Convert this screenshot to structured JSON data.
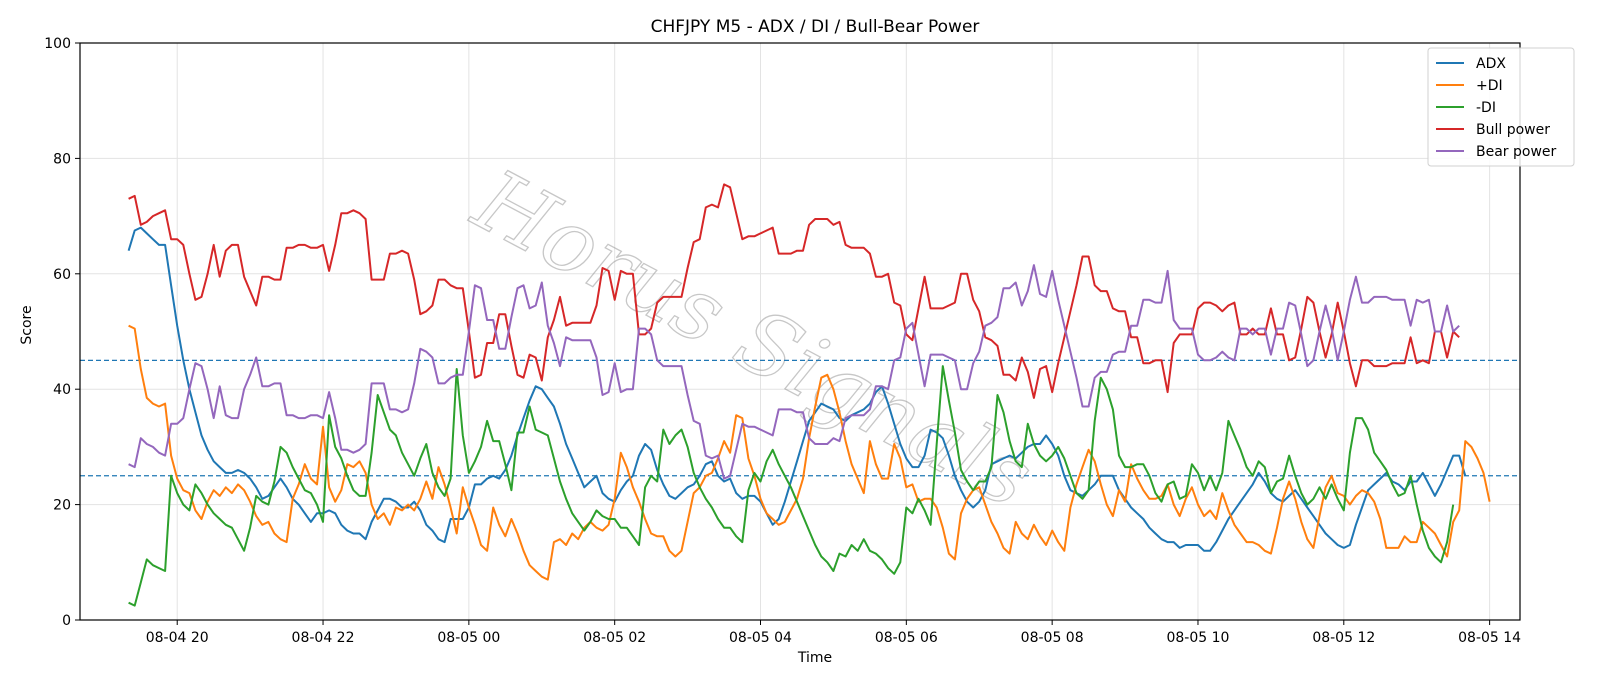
{
  "chart_data": {
    "type": "line",
    "title": "CHFJPY M5 - ADX / DI / Bull-Bear Power",
    "xlabel": "Time",
    "ylabel": "Score",
    "ylim": [
      0,
      100
    ],
    "yticks": [
      "0",
      "20",
      "40",
      "60",
      "80",
      "100"
    ],
    "x_start": "2025-08-04 19:20",
    "x_interval_minutes": 5,
    "xlim": [
      "2025-08-04 18:40",
      "2025-08-05 14:25"
    ],
    "xticks": [
      {
        "t": "2025-08-04 20:00",
        "label": "08-04 20"
      },
      {
        "t": "2025-08-04 22:00",
        "label": "08-04 22"
      },
      {
        "t": "2025-08-05 00:00",
        "label": "08-05 00"
      },
      {
        "t": "2025-08-05 02:00",
        "label": "08-05 02"
      },
      {
        "t": "2025-08-05 04:00",
        "label": "08-05 04"
      },
      {
        "t": "2025-08-05 06:00",
        "label": "08-05 06"
      },
      {
        "t": "2025-08-05 08:00",
        "label": "08-05 08"
      },
      {
        "t": "2025-08-05 10:00",
        "label": "08-05 10"
      },
      {
        "t": "2025-08-05 12:00",
        "label": "08-05 12"
      },
      {
        "t": "2025-08-05 14:00",
        "label": "08-05 14"
      }
    ],
    "hlines": [
      45,
      25
    ],
    "grid": true,
    "legend_position": "top-right",
    "watermark": "Horus Signals",
    "series": [
      {
        "name": "ADX",
        "color": "#1f77b4",
        "values": [
          64,
          67.5,
          68,
          67,
          66,
          65,
          65,
          58,
          51,
          45,
          40,
          36,
          32,
          29.5,
          27.5,
          26.5,
          25.5,
          25.5,
          26,
          25.5,
          24.5,
          23,
          21,
          21.5,
          23,
          24.5,
          23,
          21,
          20,
          18.5,
          17,
          18.5,
          18.5,
          19,
          18.5,
          16.5,
          15.5,
          15,
          15,
          14,
          17,
          19,
          21,
          21,
          20.5,
          19.5,
          19.5,
          20.5,
          19,
          16.5,
          15.5,
          14,
          13.5,
          17.5,
          17.5,
          17.5,
          19.5,
          23.5,
          23.5,
          24.5,
          25,
          24.5,
          26,
          28.5,
          32,
          35,
          38,
          40.5,
          40,
          38.5,
          37,
          34,
          30.5,
          28,
          25.5,
          23,
          24,
          25,
          22,
          21,
          20.5,
          22.5,
          24,
          25,
          28.5,
          30.5,
          29.5,
          26,
          23.5,
          21.5,
          21,
          22,
          23,
          23.5,
          25,
          27,
          27.5,
          25,
          24,
          24.5,
          22,
          21,
          21.5,
          21.5,
          20.5,
          18.5,
          16.5,
          17.5,
          20.5,
          24,
          27.5,
          31,
          34.5,
          36,
          37.5,
          37,
          36.5,
          35,
          34.5,
          35.5,
          36,
          36.5,
          37.5,
          39.5,
          40.5,
          37.5,
          34,
          30.5,
          28,
          26.5,
          26.5,
          28.5,
          33,
          32.5,
          31.5,
          28.5,
          25,
          22.5,
          20.5,
          19.5,
          20.5,
          22.5,
          27,
          27.5,
          28,
          28.5,
          28,
          29,
          30,
          30.5,
          30.5,
          32,
          30.5,
          28.5,
          25,
          22.5,
          22,
          21.5,
          22.5,
          23.5,
          25,
          25,
          25,
          22.5,
          21,
          19.5,
          18.5,
          17.5,
          16,
          15,
          14,
          13.5,
          13.5,
          12.5,
          13,
          13,
          13,
          12,
          12,
          13.5,
          15.5,
          17.5,
          19,
          20.5,
          22,
          23.5,
          25.5,
          24,
          22,
          21,
          20.5,
          21.5,
          22.5,
          21,
          19.5,
          18,
          16.5,
          15,
          14,
          13,
          12.5,
          13,
          16.5,
          19.5,
          22.5,
          23.5,
          24.5,
          25.5,
          24,
          23.5,
          22.5,
          24,
          24,
          25.5,
          23.5,
          21.5,
          23.5,
          26,
          28.5,
          28.5,
          25
        ]
      },
      {
        "name": "+DI",
        "color": "#ff7f0e",
        "values": [
          51,
          50.5,
          43.5,
          38.5,
          37.5,
          37,
          37.5,
          28.5,
          24.5,
          22.5,
          22,
          19,
          17.5,
          20.5,
          22.5,
          21.5,
          23,
          22,
          23.5,
          22.5,
          20.5,
          18,
          16.5,
          17,
          15,
          14,
          13.5,
          21,
          23.5,
          27,
          24.5,
          23.5,
          33.5,
          23,
          20.5,
          22.5,
          27,
          26.5,
          27.5,
          25.5,
          20,
          17.5,
          18.5,
          16.5,
          19.5,
          19,
          20,
          19,
          21,
          24,
          21,
          26.5,
          23.5,
          19.5,
          15,
          23,
          19.5,
          16.5,
          13,
          12,
          19.5,
          16.5,
          14.5,
          17.5,
          15,
          12,
          9.5,
          8.5,
          7.5,
          7,
          13.5,
          14,
          13,
          15,
          14,
          16,
          17,
          16,
          15.5,
          16.5,
          21,
          29,
          26.5,
          23,
          20.5,
          17.5,
          15,
          14.5,
          14.5,
          12,
          11,
          12,
          17,
          22,
          23,
          25,
          25.5,
          28,
          31,
          29,
          35.5,
          35,
          28,
          25,
          21,
          18.5,
          17.5,
          16.5,
          17,
          19,
          21,
          24.5,
          31.5,
          37,
          42,
          42.5,
          40,
          36,
          31,
          27,
          24.5,
          22,
          31,
          27,
          24.5,
          24.5,
          30.5,
          28,
          23,
          23.5,
          20.5,
          21,
          21,
          19.5,
          16,
          11.5,
          10.5,
          18.5,
          21,
          22.5,
          23,
          20,
          17,
          15,
          12.5,
          11.5,
          17,
          15,
          14,
          16.5,
          14.5,
          13,
          15.5,
          13.5,
          12,
          19.5,
          23.5,
          26.5,
          29.5,
          27.5,
          23.5,
          20,
          18,
          22.5,
          20.5,
          27,
          24.5,
          22.5,
          21,
          21,
          21.5,
          23.5,
          20,
          18,
          21,
          23,
          20,
          18,
          19,
          17.5,
          22,
          19,
          16.5,
          15,
          13.5,
          13.5,
          13,
          12,
          11.5,
          16,
          21,
          24,
          21,
          17,
          14,
          12.5,
          18,
          23,
          25,
          22,
          21.5,
          20,
          21.5,
          22.5,
          22,
          20.5,
          17.5,
          12.5,
          12.5,
          12.5,
          14.5,
          13.5,
          13.5,
          17,
          16,
          15,
          13,
          11,
          17,
          19,
          31,
          30,
          28,
          25.5,
          20.5
        ]
      },
      {
        "name": "-DI",
        "color": "#2ca02c",
        "values": [
          3,
          2.5,
          6.5,
          10.5,
          9.5,
          9,
          8.5,
          25,
          22,
          20,
          19,
          23.5,
          22,
          20,
          18.5,
          17.5,
          16.5,
          16,
          14,
          12,
          16,
          21.5,
          20.5,
          20,
          24,
          30,
          29,
          26.5,
          24.5,
          22.5,
          22,
          20,
          17,
          35.5,
          30,
          28,
          25,
          22.5,
          21.5,
          21.5,
          29,
          39,
          36,
          33,
          32,
          29,
          27,
          25,
          28,
          30.5,
          25.5,
          23,
          21.5,
          24.5,
          43.5,
          32,
          25.5,
          27.5,
          30,
          34.5,
          31,
          31,
          27,
          22.5,
          32.5,
          32.5,
          37,
          33,
          32.5,
          32,
          28,
          24,
          21,
          18.5,
          17,
          15.5,
          17,
          19,
          18,
          17.5,
          17.5,
          16,
          16,
          14.5,
          13,
          23,
          25,
          24,
          33,
          30.5,
          32,
          33,
          30,
          25.5,
          23,
          21,
          19.5,
          17.5,
          16,
          16,
          14.5,
          13.5,
          22.5,
          25.5,
          24,
          27.5,
          29.5,
          27,
          25,
          23,
          20.5,
          18,
          15.5,
          13,
          11,
          10,
          8.5,
          11.5,
          11,
          13,
          12,
          14,
          12,
          11.5,
          10.5,
          9,
          8,
          10,
          19.5,
          18.5,
          21,
          19,
          16.5,
          30.5,
          44,
          38,
          32.5,
          26,
          24,
          22.5,
          24,
          24,
          26.5,
          39,
          36,
          31,
          27.5,
          26.5,
          34,
          30.5,
          28.5,
          27.5,
          28.5,
          30,
          28,
          25,
          22,
          21,
          22.5,
          34.5,
          42,
          40,
          36.5,
          28.5,
          26.5,
          26.5,
          27,
          27,
          25,
          22,
          20.5,
          23.5,
          24,
          21,
          21.5,
          27,
          25.5,
          22.5,
          25,
          22.5,
          25.5,
          34.5,
          32,
          29.5,
          26.5,
          25,
          27.5,
          26.5,
          22,
          24,
          24.5,
          28.5,
          25,
          22,
          20,
          21,
          23,
          21,
          23.5,
          21,
          19,
          29,
          35,
          35,
          33,
          29,
          27.5,
          26,
          23.5,
          21.5,
          22,
          25,
          20,
          15.5,
          12.5,
          11,
          10,
          13.5,
          20
        ]
      },
      {
        "name": "Bull power",
        "color": "#d62728",
        "values": [
          73,
          73.5,
          68.5,
          69,
          70,
          70.5,
          71,
          66,
          66,
          65,
          60,
          55.5,
          56,
          60,
          65,
          59.5,
          64,
          65,
          65,
          59.5,
          57,
          54.5,
          59.5,
          59.5,
          59,
          59,
          64.5,
          64.5,
          65,
          65,
          64.5,
          64.5,
          65,
          60.5,
          65,
          70.5,
          70.5,
          71,
          70.5,
          69.5,
          59,
          59,
          59,
          63.5,
          63.5,
          64,
          63.5,
          59,
          53,
          53.5,
          54.5,
          59,
          59,
          58,
          57.5,
          57.5,
          50,
          42,
          42.5,
          48,
          48,
          53,
          53,
          47.5,
          42.5,
          42,
          46,
          45.5,
          41.5,
          49,
          52,
          56,
          51,
          51.5,
          51.5,
          51.5,
          51.5,
          54.5,
          61,
          60.5,
          55.5,
          60.5,
          60,
          60,
          49.5,
          49.5,
          50.5,
          55,
          56,
          56,
          56,
          56,
          61,
          65.5,
          66,
          71.5,
          72,
          71.5,
          75.5,
          75,
          70.5,
          66,
          66.5,
          66.5,
          67,
          67.5,
          68,
          63.5,
          63.5,
          63.5,
          64,
          64,
          68.5,
          69.5,
          69.5,
          69.5,
          68.5,
          69,
          65,
          64.5,
          64.5,
          64.5,
          63.5,
          59.5,
          59.5,
          60,
          55,
          54.5,
          49.5,
          48.5,
          54,
          59.5,
          54,
          54,
          54,
          54.5,
          55,
          60,
          60,
          55.5,
          53.5,
          49,
          48.5,
          47.5,
          42.5,
          42.5,
          41.5,
          45.5,
          43,
          38.5,
          43.5,
          44,
          39.5,
          44.5,
          49,
          53.5,
          58,
          63,
          63,
          58,
          57,
          57,
          54,
          53.5,
          53.5,
          49,
          49,
          44.5,
          44.5,
          45,
          45,
          39.5,
          48,
          49.5,
          49.5,
          49.5,
          54,
          55,
          55,
          54.5,
          53.5,
          54.5,
          55,
          49.5,
          49.5,
          50.5,
          49.5,
          49.5,
          54,
          49.5,
          49.5,
          45,
          45.5,
          50.5,
          56,
          55,
          50,
          45.5,
          49.5,
          55,
          50,
          44.5,
          40.5,
          45,
          45,
          44,
          44,
          44,
          44.5,
          44.5,
          44.5,
          49,
          44.5,
          45,
          44.5,
          50,
          50,
          45.5,
          50,
          49
        ]
      },
      {
        "name": "Bear power",
        "color": "#9467bd",
        "values": [
          27,
          26.5,
          31.5,
          30.5,
          30,
          29,
          28.5,
          34,
          34,
          35,
          40,
          44.5,
          44,
          40,
          35,
          40.5,
          35.5,
          35,
          35,
          40,
          42.5,
          45.5,
          40.5,
          40.5,
          41,
          41,
          35.5,
          35.5,
          35,
          35,
          35.5,
          35.5,
          35,
          39.5,
          35,
          29.5,
          29.5,
          29,
          29.5,
          30.5,
          41,
          41,
          41,
          36.5,
          36.5,
          36,
          36.5,
          41,
          47,
          46.5,
          45.5,
          41,
          41,
          42,
          42.5,
          42.5,
          50,
          58,
          57.5,
          52,
          52,
          47,
          47,
          52.5,
          57.5,
          58,
          54,
          54.5,
          58.5,
          51,
          48,
          44,
          49,
          48.5,
          48.5,
          48.5,
          48.5,
          45.5,
          39,
          39.5,
          44.5,
          39.5,
          40,
          40,
          50.5,
          50.5,
          49.5,
          45,
          44,
          44,
          44,
          44,
          39,
          34.5,
          34,
          28.5,
          28,
          28.5,
          24.5,
          25,
          29.5,
          34,
          33.5,
          33.5,
          33,
          32.5,
          32,
          36.5,
          36.5,
          36.5,
          36,
          36,
          31.5,
          30.5,
          30.5,
          30.5,
          31.5,
          31,
          35,
          35.5,
          35.5,
          35.5,
          36.5,
          40.5,
          40.5,
          40,
          45,
          45.5,
          50.5,
          51.5,
          46,
          40.5,
          46,
          46,
          46,
          45.5,
          45,
          40,
          40,
          44.5,
          46.5,
          51,
          51.5,
          52.5,
          57.5,
          57.5,
          58.5,
          54.5,
          57,
          61.5,
          56.5,
          56,
          60.5,
          55.5,
          51,
          46.5,
          42,
          37,
          37,
          42,
          43,
          43,
          46,
          46.5,
          46.5,
          51,
          51,
          55.5,
          55.5,
          55,
          55,
          60.5,
          52,
          50.5,
          50.5,
          50.5,
          46,
          45,
          45,
          45.5,
          46.5,
          45.5,
          45,
          50.5,
          50.5,
          49.5,
          50.5,
          50.5,
          46,
          50.5,
          50.5,
          55,
          54.5,
          49.5,
          44,
          45,
          50,
          54.5,
          50.5,
          45,
          50,
          55.5,
          59.5,
          55,
          55,
          56,
          56,
          56,
          55.5,
          55.5,
          55.5,
          51,
          55.5,
          55,
          55.5,
          50,
          50,
          54.5,
          50,
          51
        ]
      }
    ]
  }
}
